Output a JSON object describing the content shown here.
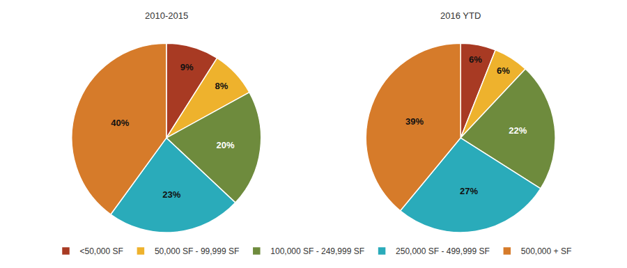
{
  "chart_data": [
    {
      "type": "pie",
      "title": "2010-2015",
      "categories": [
        "<50,000 SF",
        "50,000 SF - 99,999 SF",
        "100,000 SF - 249,999 SF",
        "250,000 SF - 499,999 SF",
        "500,000 + SF"
      ],
      "values": [
        9,
        8,
        20,
        23,
        40
      ],
      "value_labels": [
        "9%",
        "8%",
        "20%",
        "23%",
        "40%"
      ],
      "colors": [
        "#a83a23",
        "#eeb22d",
        "#6e8b3d",
        "#2aabba",
        "#d67b2a"
      ],
      "data_labels": true,
      "legend": "bottom"
    },
    {
      "type": "pie",
      "title": "2016 YTD",
      "categories": [
        "<50,000 SF",
        "50,000 SF - 99,999 SF",
        "100,000 SF - 249,999 SF",
        "250,000 SF - 499,999 SF",
        "500,000 + SF"
      ],
      "values": [
        6,
        6,
        22,
        27,
        39
      ],
      "value_labels": [
        "6%",
        "6%",
        "22%",
        "27%",
        "39%"
      ],
      "colors": [
        "#a83a23",
        "#eeb22d",
        "#6e8b3d",
        "#2aabba",
        "#d67b2a"
      ],
      "data_labels": true,
      "legend": "bottom"
    }
  ]
}
